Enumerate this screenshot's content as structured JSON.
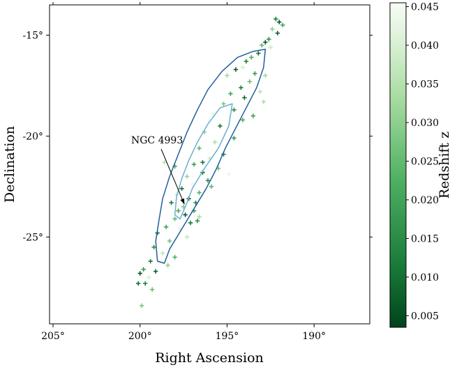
{
  "chart_data": {
    "type": "scatter",
    "title": "",
    "xlabel": "Right Ascension",
    "ylabel": "Declination",
    "x_inverted": true,
    "xlim": [
      205.2,
      186.8
    ],
    "ylim": [
      -29.3,
      -13.5
    ],
    "x_ticks": [
      205,
      200,
      195,
      190
    ],
    "x_tick_labels": [
      "205°",
      "200°",
      "195°",
      "190°"
    ],
    "y_ticks": [
      -15,
      -20,
      -25
    ],
    "y_tick_labels": [
      "-15°",
      "-20°",
      "-25°"
    ],
    "grid": false,
    "colorbar": {
      "label": "Redshift z",
      "cmap": "Greens_r",
      "range": [
        0.0035,
        0.0455
      ],
      "ticks": [
        0.005,
        0.01,
        0.015,
        0.02,
        0.025,
        0.03,
        0.035,
        0.04,
        0.045
      ],
      "tick_labels": [
        "0.005",
        "0.010",
        "0.015",
        "0.020",
        "0.025",
        "0.030",
        "0.035",
        "0.040",
        "0.045"
      ]
    },
    "annotation": {
      "text": "NGC 4993",
      "target": {
        "ra": 197.45,
        "dec": -23.38
      }
    },
    "contours": [
      {
        "name": "outer",
        "color": "#1f5f9a",
        "points": [
          [
            192.8,
            -15.7
          ],
          [
            192.9,
            -16.6
          ],
          [
            193.3,
            -17.6
          ],
          [
            193.9,
            -18.6
          ],
          [
            194.5,
            -19.6
          ],
          [
            195.1,
            -20.6
          ],
          [
            195.6,
            -21.6
          ],
          [
            196.2,
            -22.6
          ],
          [
            196.9,
            -23.6
          ],
          [
            197.6,
            -24.6
          ],
          [
            198.3,
            -25.6
          ],
          [
            198.6,
            -26.3
          ],
          [
            199.0,
            -26.2
          ],
          [
            199.1,
            -25.2
          ],
          [
            198.9,
            -24.1
          ],
          [
            198.7,
            -23.1
          ],
          [
            198.3,
            -22.0
          ],
          [
            197.8,
            -20.9
          ],
          [
            197.3,
            -19.8
          ],
          [
            196.7,
            -18.7
          ],
          [
            196.1,
            -17.7
          ],
          [
            195.3,
            -16.8
          ],
          [
            194.4,
            -16.1
          ],
          [
            193.5,
            -15.8
          ],
          [
            192.8,
            -15.7
          ]
        ]
      },
      {
        "name": "inner",
        "color": "#6aaed6",
        "points": [
          [
            194.7,
            -18.4
          ],
          [
            194.9,
            -19.5
          ],
          [
            195.5,
            -20.6
          ],
          [
            196.3,
            -21.6
          ],
          [
            197.0,
            -22.6
          ],
          [
            197.3,
            -23.3
          ],
          [
            197.7,
            -24.1
          ],
          [
            198.0,
            -23.9
          ],
          [
            197.9,
            -23.0
          ],
          [
            197.6,
            -22.1
          ],
          [
            197.2,
            -21.2
          ],
          [
            196.7,
            -20.3
          ],
          [
            196.1,
            -19.4
          ],
          [
            195.4,
            -18.6
          ],
          [
            194.7,
            -18.4
          ]
        ]
      }
    ],
    "points": [
      {
        "ra": 192.0,
        "dec": -14.35,
        "z": 0.006
      },
      {
        "ra": 192.2,
        "dec": -14.2,
        "z": 0.012
      },
      {
        "ra": 191.8,
        "dec": -14.5,
        "z": 0.02
      },
      {
        "ra": 192.4,
        "dec": -14.7,
        "z": 0.03
      },
      {
        "ra": 192.1,
        "dec": -14.9,
        "z": 0.008
      },
      {
        "ra": 192.6,
        "dec": -15.2,
        "z": 0.016
      },
      {
        "ra": 192.8,
        "dec": -15.35,
        "z": 0.006
      },
      {
        "ra": 193.0,
        "dec": -15.5,
        "z": 0.025
      },
      {
        "ra": 192.5,
        "dec": -15.6,
        "z": 0.038
      },
      {
        "ra": 193.2,
        "dec": -15.9,
        "z": 0.01
      },
      {
        "ra": 193.6,
        "dec": -16.1,
        "z": 0.022
      },
      {
        "ra": 193.9,
        "dec": -16.3,
        "z": 0.014
      },
      {
        "ra": 194.1,
        "dec": -16.6,
        "z": 0.04
      },
      {
        "ra": 193.4,
        "dec": -16.9,
        "z": 0.018
      },
      {
        "ra": 194.5,
        "dec": -16.7,
        "z": 0.007
      },
      {
        "ra": 192.8,
        "dec": -17.0,
        "z": 0.032
      },
      {
        "ra": 193.7,
        "dec": -17.3,
        "z": 0.026
      },
      {
        "ra": 194.2,
        "dec": -17.6,
        "z": 0.012
      },
      {
        "ra": 193.1,
        "dec": -17.8,
        "z": 0.036
      },
      {
        "ra": 194.8,
        "dec": -17.9,
        "z": 0.02
      },
      {
        "ra": 194.0,
        "dec": -18.1,
        "z": 0.009
      },
      {
        "ra": 195.2,
        "dec": -18.4,
        "z": 0.028
      },
      {
        "ra": 194.6,
        "dec": -18.7,
        "z": 0.015
      },
      {
        "ra": 195.8,
        "dec": -18.9,
        "z": 0.042
      },
      {
        "ra": 194.1,
        "dec": -19.2,
        "z": 0.022
      },
      {
        "ra": 195.4,
        "dec": -19.5,
        "z": 0.011
      },
      {
        "ra": 196.3,
        "dec": -19.8,
        "z": 0.03
      },
      {
        "ra": 194.6,
        "dec": -20.1,
        "z": 0.017
      },
      {
        "ra": 195.7,
        "dec": -20.3,
        "z": 0.034
      },
      {
        "ra": 196.6,
        "dec": -20.6,
        "z": 0.024
      },
      {
        "ra": 195.2,
        "dec": -20.9,
        "z": 0.013
      },
      {
        "ra": 196.0,
        "dec": -21.1,
        "z": 0.038
      },
      {
        "ra": 196.9,
        "dec": -21.4,
        "z": 0.019
      },
      {
        "ra": 195.5,
        "dec": -21.6,
        "z": 0.027
      },
      {
        "ra": 196.4,
        "dec": -21.8,
        "z": 0.008
      },
      {
        "ra": 197.3,
        "dec": -22.0,
        "z": 0.031
      },
      {
        "ra": 198.0,
        "dec": -21.5,
        "z": 0.021
      },
      {
        "ra": 198.6,
        "dec": -21.3,
        "z": 0.035
      },
      {
        "ra": 196.1,
        "dec": -22.2,
        "z": 0.016
      },
      {
        "ra": 197.0,
        "dec": -22.4,
        "z": 0.044
      },
      {
        "ra": 197.6,
        "dec": -22.6,
        "z": 0.01
      },
      {
        "ra": 196.6,
        "dec": -22.8,
        "z": 0.023
      },
      {
        "ra": 197.9,
        "dec": -22.9,
        "z": 0.039
      },
      {
        "ra": 197.2,
        "dec": -23.1,
        "z": 0.007
      },
      {
        "ra": 196.8,
        "dec": -23.3,
        "z": 0.014
      },
      {
        "ra": 197.5,
        "dec": -23.5,
        "z": 0.029
      },
      {
        "ra": 198.2,
        "dec": -23.3,
        "z": 0.012
      },
      {
        "ra": 196.9,
        "dec": -23.7,
        "z": 0.018
      },
      {
        "ra": 197.4,
        "dec": -23.9,
        "z": 0.006
      },
      {
        "ra": 198.0,
        "dec": -24.1,
        "z": 0.025
      },
      {
        "ra": 196.6,
        "dec": -24.0,
        "z": 0.033
      },
      {
        "ra": 197.1,
        "dec": -24.3,
        "z": 0.011
      },
      {
        "ra": 198.5,
        "dec": -24.5,
        "z": 0.02
      },
      {
        "ra": 197.7,
        "dec": -24.6,
        "z": 0.041
      },
      {
        "ra": 199.0,
        "dec": -24.8,
        "z": 0.009
      },
      {
        "ra": 198.3,
        "dec": -25.2,
        "z": 0.027
      },
      {
        "ra": 199.2,
        "dec": -25.5,
        "z": 0.015
      },
      {
        "ra": 198.7,
        "dec": -25.8,
        "z": 0.036
      },
      {
        "ra": 198.0,
        "dec": -26.0,
        "z": 0.022
      },
      {
        "ra": 199.4,
        "dec": -26.2,
        "z": 0.012
      },
      {
        "ra": 198.4,
        "dec": -26.4,
        "z": 0.03
      },
      {
        "ra": 199.1,
        "dec": -26.7,
        "z": 0.008
      },
      {
        "ra": 199.8,
        "dec": -26.6,
        "z": 0.018
      },
      {
        "ra": 199.5,
        "dec": -27.0,
        "z": 0.04
      },
      {
        "ra": 200.0,
        "dec": -26.8,
        "z": 0.006
      },
      {
        "ra": 199.7,
        "dec": -27.3,
        "z": 0.014
      },
      {
        "ra": 199.3,
        "dec": -27.6,
        "z": 0.026
      },
      {
        "ra": 200.1,
        "dec": -27.3,
        "z": 0.01
      },
      {
        "ra": 199.9,
        "dec": -28.4,
        "z": 0.028
      },
      {
        "ra": 195.0,
        "dec": -17.0,
        "z": 0.032
      },
      {
        "ra": 196.7,
        "dec": -24.2,
        "z": 0.016
      },
      {
        "ra": 197.3,
        "dec": -25.0,
        "z": 0.037
      },
      {
        "ra": 195.9,
        "dec": -22.5,
        "z": 0.024
      },
      {
        "ra": 194.9,
        "dec": -21.9,
        "z": 0.043
      },
      {
        "ra": 193.5,
        "dec": -19.0,
        "z": 0.019
      },
      {
        "ra": 192.9,
        "dec": -18.3,
        "z": 0.034
      },
      {
        "ra": 196.4,
        "dec": -21.3,
        "z": 0.011
      },
      {
        "ra": 197.8,
        "dec": -23.7,
        "z": 0.021
      }
    ]
  }
}
